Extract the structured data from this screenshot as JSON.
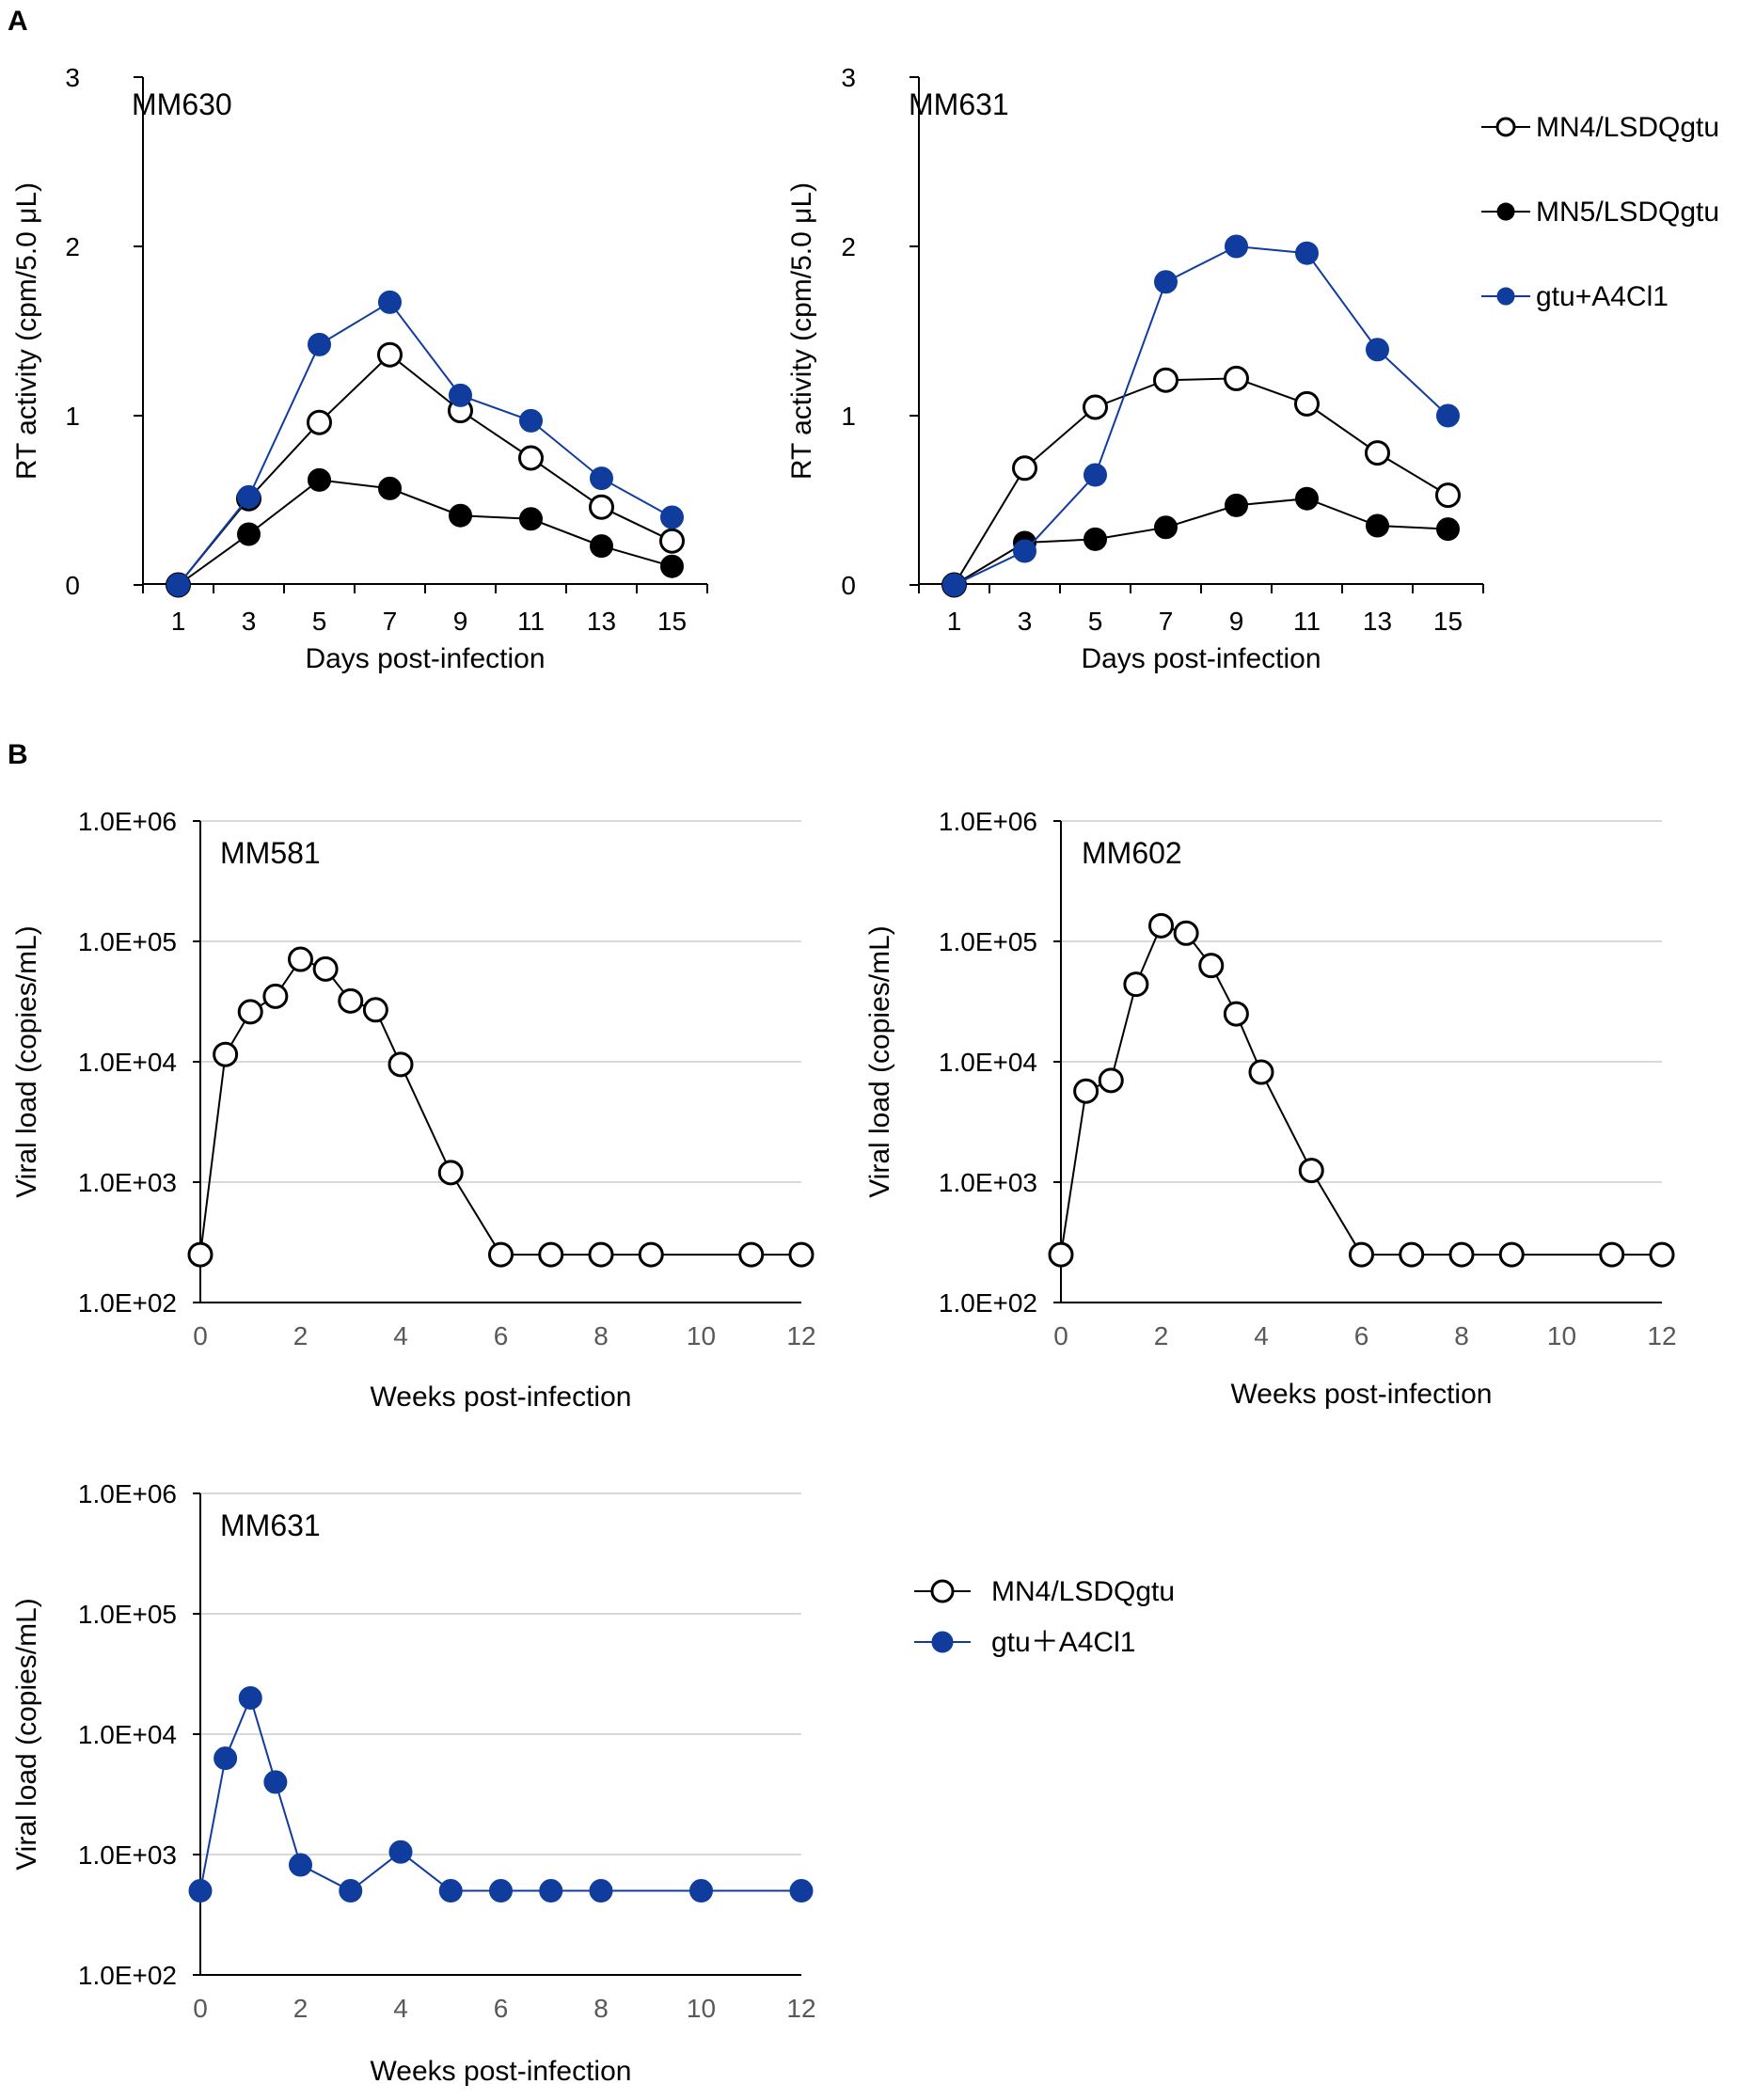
{
  "panels": {
    "a": "A",
    "b": "B"
  },
  "colors": {
    "black": "#000000",
    "blue": "#103C9E",
    "grid": "#D9D9D9",
    "tick_gray": "#595959"
  },
  "legend_a": [
    {
      "label": "MN4/LSDQgtu",
      "marker": "open",
      "color": "#000000"
    },
    {
      "label": "MN5/LSDQgtu",
      "marker": "filled",
      "color": "#000000"
    },
    {
      "label": "gtu+A4Cl1",
      "marker": "filled",
      "color": "#103C9E"
    }
  ],
  "legend_b": [
    {
      "label": "MN4/LSDQgtu",
      "marker": "open",
      "color": "#000000"
    },
    {
      "label": "gtu＋A4Cl1",
      "marker": "filled",
      "color": "#103C9E"
    }
  ],
  "chart_data": [
    {
      "type": "line",
      "id": "a1",
      "title": "MM630",
      "xlabel": "Days post-infection",
      "ylabel": "RT activity (cpm/5.0 μL)",
      "x": [
        1,
        3,
        5,
        7,
        9,
        11,
        13,
        15
      ],
      "xlim": [
        0,
        16
      ],
      "ylim": [
        0,
        3
      ],
      "yticks": [
        0,
        1,
        2,
        3
      ],
      "yscale": "linear",
      "grid": false,
      "series": [
        {
          "name": "MN4/LSDQgtu",
          "marker": "open",
          "color": "#000000",
          "values": [
            0,
            0.51,
            0.96,
            1.36,
            1.03,
            0.75,
            0.46,
            0.26
          ]
        },
        {
          "name": "MN5/LSDQgtu",
          "marker": "filled",
          "color": "#000000",
          "values": [
            0,
            0.3,
            0.62,
            0.57,
            0.41,
            0.39,
            0.23,
            0.11
          ]
        },
        {
          "name": "gtu+A4Cl1",
          "marker": "filled",
          "color": "#103C9E",
          "values": [
            0,
            0.52,
            1.42,
            1.67,
            1.12,
            0.97,
            0.63,
            0.4
          ]
        }
      ]
    },
    {
      "type": "line",
      "id": "a2",
      "title": "MM631",
      "xlabel": "Days post-infection",
      "ylabel": "RT activity (cpm/5.0 μL)",
      "x": [
        1,
        3,
        5,
        7,
        9,
        11,
        13,
        15
      ],
      "xlim": [
        0,
        16
      ],
      "ylim": [
        0,
        3
      ],
      "yticks": [
        0,
        1,
        2,
        3
      ],
      "yscale": "linear",
      "grid": false,
      "series": [
        {
          "name": "MN4/LSDQgtu",
          "marker": "open",
          "color": "#000000",
          "values": [
            0,
            0.69,
            1.05,
            1.21,
            1.22,
            1.07,
            0.78,
            0.53
          ]
        },
        {
          "name": "MN5/LSDQgtu",
          "marker": "filled",
          "color": "#000000",
          "values": [
            0,
            0.25,
            0.27,
            0.34,
            0.47,
            0.51,
            0.35,
            0.33
          ]
        },
        {
          "name": "gtu+A4Cl1",
          "marker": "filled",
          "color": "#103C9E",
          "values": [
            0,
            0.2,
            0.65,
            1.79,
            2.0,
            1.96,
            1.39,
            1.0
          ]
        }
      ]
    },
    {
      "type": "line",
      "id": "b1",
      "title": "MM581",
      "xlabel": "Weeks post-infection",
      "ylabel": "Viral load (copies/mL)",
      "xlim": [
        0,
        12
      ],
      "xticks": [
        0,
        2,
        4,
        6,
        8,
        10,
        12
      ],
      "yscale": "log",
      "ylim": [
        100,
        1000000
      ],
      "yticks": [
        100,
        1000,
        10000,
        100000,
        1000000
      ],
      "ytick_labels": [
        "1.0E+02",
        "1.0E+03",
        "1.0E+04",
        "1.0E+05",
        "1.0E+06"
      ],
      "grid": true,
      "series": [
        {
          "name": "MN4/LSDQgtu",
          "marker": "open",
          "color": "#000000",
          "x": [
            0,
            0.5,
            1,
            1.5,
            2,
            2.5,
            3,
            3.5,
            4,
            5,
            6,
            7,
            8,
            9,
            11,
            12
          ],
          "values": [
            250,
            11500,
            26000,
            35000,
            71000,
            59000,
            32000,
            27000,
            9500,
            1200,
            250,
            250,
            250,
            250,
            250,
            250
          ]
        }
      ]
    },
    {
      "type": "line",
      "id": "b2",
      "title": "MM602",
      "xlabel": "Weeks post-infection",
      "ylabel": "Viral load (copies/mL)",
      "xlim": [
        0,
        12
      ],
      "xticks": [
        0,
        2,
        4,
        6,
        8,
        10,
        12
      ],
      "yscale": "log",
      "ylim": [
        100,
        1000000
      ],
      "yticks": [
        100,
        1000,
        10000,
        100000,
        1000000
      ],
      "ytick_labels": [
        "1.0E+02",
        "1.0E+03",
        "1.0E+04",
        "1.0E+05",
        "1.0E+06"
      ],
      "grid": true,
      "series": [
        {
          "name": "MN4/LSDQgtu",
          "marker": "open",
          "color": "#000000",
          "x": [
            0,
            0.5,
            1,
            1.5,
            2,
            2.5,
            3,
            3.5,
            4,
            5,
            6,
            7,
            8,
            9,
            11,
            12
          ],
          "values": [
            250,
            5700,
            7000,
            44000,
            135000,
            117000,
            63000,
            25000,
            8200,
            1250,
            250,
            250,
            250,
            250,
            250,
            250
          ]
        }
      ]
    },
    {
      "type": "line",
      "id": "b3",
      "title": "MM631",
      "xlabel": "Weeks post-infection",
      "ylabel": "Viral load (copies/mL)",
      "xlim": [
        0,
        12
      ],
      "xticks": [
        0,
        2,
        4,
        6,
        8,
        10,
        12
      ],
      "yscale": "log",
      "ylim": [
        100,
        1000000
      ],
      "yticks": [
        100,
        1000,
        10000,
        100000,
        1000000
      ],
      "ytick_labels": [
        "1.0E+02",
        "1.0E+03",
        "1.0E+04",
        "1.0E+05",
        "1.0E+06"
      ],
      "grid": true,
      "series": [
        {
          "name": "gtu+A4Cl1",
          "marker": "filled",
          "color": "#103C9E",
          "x": [
            0,
            0.5,
            1,
            1.5,
            2,
            3,
            4,
            5,
            6,
            7,
            8,
            10,
            12
          ],
          "values": [
            500,
            6300,
            20000,
            4000,
            820,
            500,
            1050,
            500,
            500,
            500,
            500,
            500,
            500
          ]
        }
      ]
    }
  ]
}
